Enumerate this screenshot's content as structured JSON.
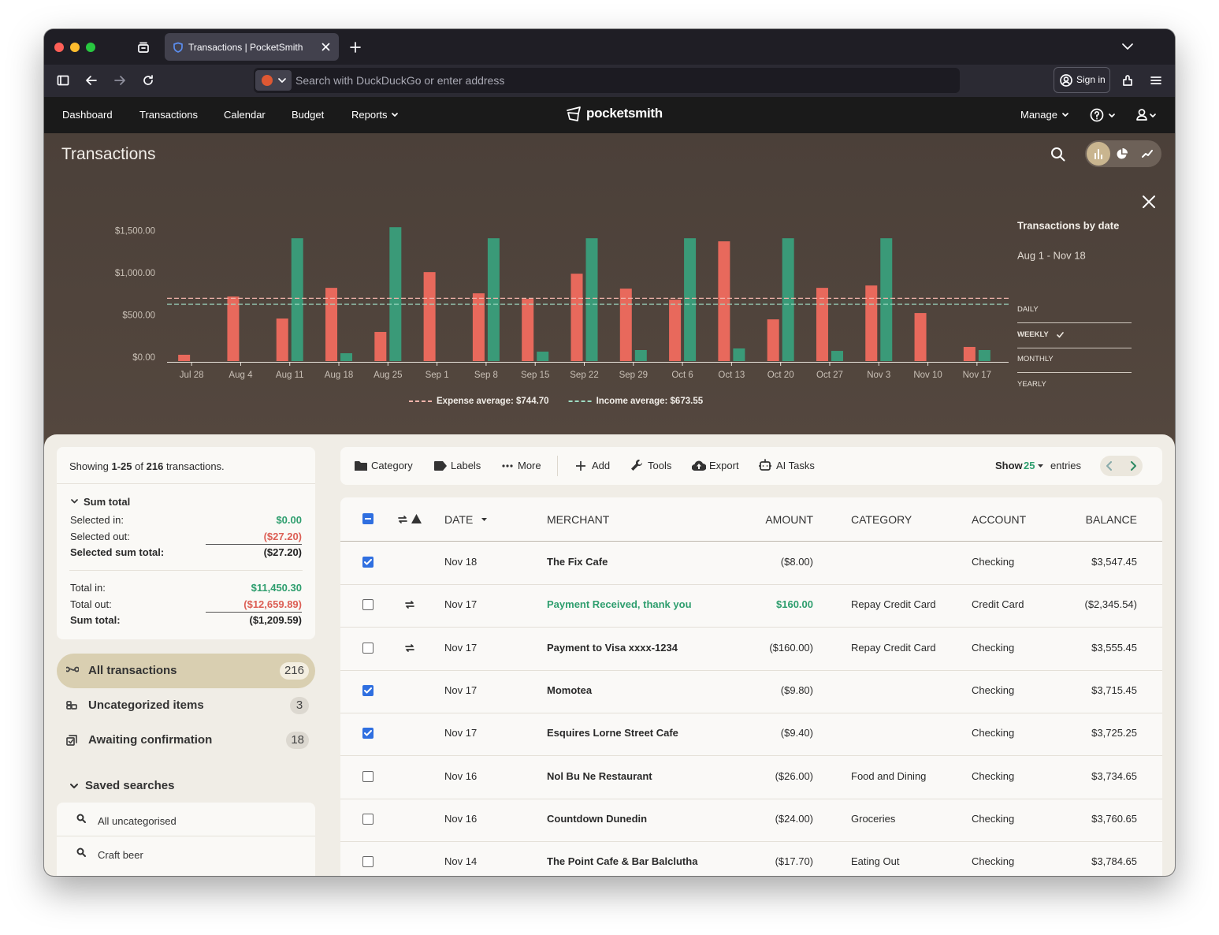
{
  "browser": {
    "tab_title": "Transactions | PocketSmith",
    "address_placeholder": "Search with DuckDuckGo or enter address",
    "sign_in": "Sign in"
  },
  "nav": {
    "items": [
      "Dashboard",
      "Transactions",
      "Calendar",
      "Budget",
      "Reports"
    ],
    "logo": "pocketsmith",
    "manage": "Manage"
  },
  "header": {
    "title": "Transactions"
  },
  "chart_data": {
    "type": "bar",
    "title": "Transactions by date",
    "subtitle": "Aug 1 - Nov 18",
    "categories": [
      "Jul 28",
      "Aug 4",
      "Aug 11",
      "Aug 18",
      "Aug 25",
      "Sep 1",
      "Sep 8",
      "Sep 15",
      "Sep 22",
      "Sep 29",
      "Oct 6",
      "Oct 13",
      "Oct 20",
      "Oct 27",
      "Nov 3",
      "Nov 10",
      "Nov 17"
    ],
    "series": [
      {
        "color": "#e8695c",
        "values": [
          75,
          766,
          505,
          869,
          346,
          1056,
          804,
          738,
          1037,
          860,
          729,
          1421,
          495,
          869,
          897,
          570,
          168
        ]
      },
      {
        "color": "#3a9a78",
        "values": [
          0,
          0,
          1458,
          93,
          1589,
          0,
          1458,
          112,
          1458,
          131,
          1458,
          150,
          1458,
          121,
          1458,
          0,
          131
        ]
      }
    ],
    "ylim": [
      0,
      1600
    ],
    "yticks": [
      {
        "value": 0,
        "label": "$0.00"
      },
      {
        "value": 500,
        "label": "$500.00"
      },
      {
        "value": 1000,
        "label": "$1,000.00"
      },
      {
        "value": 1500,
        "label": "$1,500.00"
      }
    ],
    "grid": false,
    "averages": [
      {
        "label": "Expense average: $744.70",
        "value": 744.7,
        "color": "#f0b4ab"
      },
      {
        "label": "Income average: $673.55",
        "value": 673.55,
        "color": "#9fdcc4"
      }
    ],
    "intervals": [
      "DAILY",
      "WEEKLY",
      "MONTHLY",
      "YEARLY"
    ],
    "selected_interval": 1
  },
  "summary": {
    "showing": [
      "Showing",
      "1-25",
      "of",
      "216",
      "transactions."
    ],
    "sum_heading": "Sum total",
    "selected": [
      {
        "label": "Selected in:",
        "value": "$0.00",
        "tone": "in"
      },
      {
        "label": "Selected out:",
        "value": "($27.20)",
        "tone": "out"
      },
      {
        "label": "Selected sum total:",
        "value": "($27.20)",
        "tone": "total"
      }
    ],
    "totals": [
      {
        "label": "Total in:",
        "value": "$11,450.30",
        "tone": "in"
      },
      {
        "label": "Total out:",
        "value": "($12,659.89)",
        "tone": "out"
      },
      {
        "label": "Sum total:",
        "value": "($1,209.59)",
        "tone": "total"
      }
    ]
  },
  "filters": [
    {
      "label": "All transactions",
      "count": 216,
      "active": true
    },
    {
      "label": "Uncategorized items",
      "count": 3,
      "active": false
    },
    {
      "label": "Awaiting confirmation",
      "count": 18,
      "active": false
    }
  ],
  "saved_searches": {
    "heading": "Saved searches",
    "items": [
      "All uncategorised",
      "Craft beer"
    ]
  },
  "toolbar": {
    "items": [
      "Category",
      "Labels",
      "More",
      "Add",
      "Tools",
      "Export",
      "AI Tasks"
    ],
    "show": "Show",
    "page_size": 25,
    "entries": "entries"
  },
  "table": {
    "columns": [
      "DATE",
      "MERCHANT",
      "AMOUNT",
      "CATEGORY",
      "ACCOUNT",
      "BALANCE"
    ],
    "rows": [
      {
        "checked": true,
        "transfer": false,
        "income": false,
        "date": "Nov 18",
        "merchant": "The Fix Cafe",
        "amount": "($8.00)",
        "category": null,
        "account": "Checking",
        "balance": "$3,547.45"
      },
      {
        "checked": false,
        "transfer": true,
        "income": true,
        "date": "Nov 17",
        "merchant": "Payment Received, thank you",
        "amount": "$160.00",
        "category": "Repay Credit Card",
        "account": "Credit Card",
        "balance": "($2,345.54)"
      },
      {
        "checked": false,
        "transfer": true,
        "income": false,
        "date": "Nov 17",
        "merchant": "Payment to Visa xxxx-1234",
        "amount": "($160.00)",
        "category": "Repay Credit Card",
        "account": "Checking",
        "balance": "$3,555.45"
      },
      {
        "checked": true,
        "transfer": false,
        "income": false,
        "date": "Nov 17",
        "merchant": "Momotea",
        "amount": "($9.80)",
        "category": null,
        "account": "Checking",
        "balance": "$3,715.45"
      },
      {
        "checked": true,
        "transfer": false,
        "income": false,
        "date": "Nov 17",
        "merchant": "Esquires Lorne Street Cafe",
        "amount": "($9.40)",
        "category": null,
        "account": "Checking",
        "balance": "$3,725.25"
      },
      {
        "checked": false,
        "transfer": false,
        "income": false,
        "date": "Nov 16",
        "merchant": "Nol Bu Ne Restaurant",
        "amount": "($26.00)",
        "category": "Food and Dining",
        "account": "Checking",
        "balance": "$3,734.65"
      },
      {
        "checked": false,
        "transfer": false,
        "income": false,
        "date": "Nov 16",
        "merchant": "Countdown Dunedin",
        "amount": "($24.00)",
        "category": "Groceries",
        "account": "Checking",
        "balance": "$3,760.65"
      },
      {
        "checked": false,
        "transfer": false,
        "income": false,
        "date": "Nov 14",
        "merchant": "The Point Cafe & Bar Balclutha",
        "amount": "($17.70)",
        "category": "Eating Out",
        "account": "Checking",
        "balance": "$3,784.65"
      }
    ]
  }
}
